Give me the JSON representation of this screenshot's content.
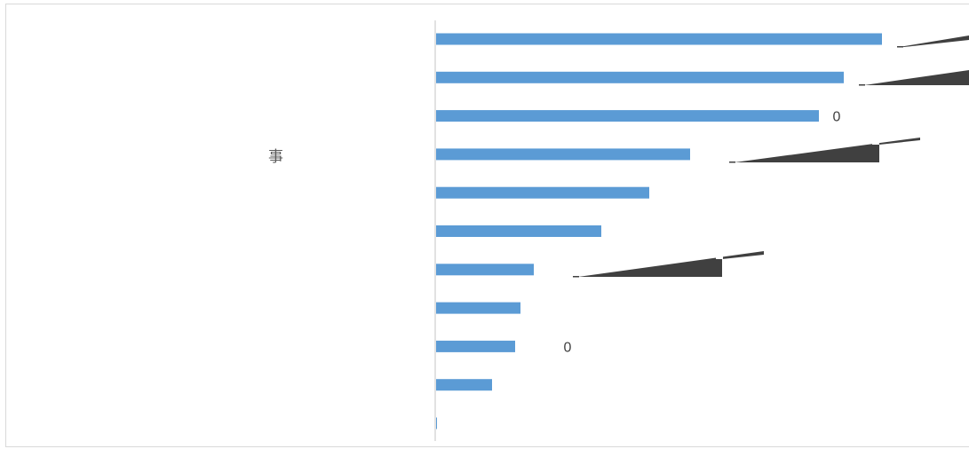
{
  "chart_data": {
    "type": "bar",
    "orientation": "horizontal",
    "category_label": "事",
    "values": [
      502,
      459,
      431,
      286,
      240,
      186,
      110,
      95,
      89,
      63,
      1
    ],
    "data_labels": [
      {
        "index": 2,
        "text": "0"
      },
      {
        "index": 8,
        "text": "0"
      }
    ],
    "xlim": [
      0,
      600
    ],
    "grid": false,
    "legend": "none",
    "colors": {
      "bar": "#5b9bd5",
      "callout": "#404040",
      "axis": "#d9d9d9",
      "label": "#404040"
    }
  }
}
